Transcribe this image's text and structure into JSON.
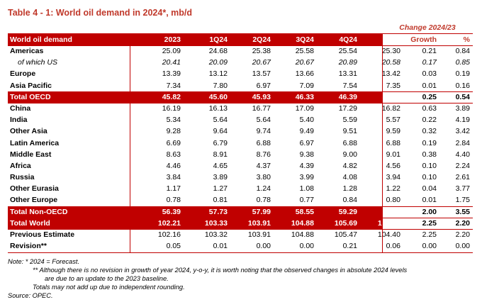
{
  "title": "Table 4 - 1: World oil demand in 2024*, mb/d",
  "header": {
    "change_group": "Change 2024/23",
    "label": "World oil demand",
    "columns": [
      "2023",
      "1Q24",
      "2Q24",
      "3Q24",
      "4Q24",
      "2024",
      "Growth",
      "%"
    ]
  },
  "rows": [
    {
      "label": "Americas",
      "values": [
        "25.09",
        "24.68",
        "25.38",
        "25.58",
        "25.54",
        "25.30",
        "0.21",
        "0.84"
      ],
      "style": "normal"
    },
    {
      "label": "of which US",
      "values": [
        "20.41",
        "20.09",
        "20.67",
        "20.67",
        "20.89",
        "20.58",
        "0.17",
        "0.85"
      ],
      "style": "italic"
    },
    {
      "label": "Europe",
      "values": [
        "13.39",
        "13.12",
        "13.57",
        "13.66",
        "13.31",
        "13.42",
        "0.03",
        "0.19"
      ],
      "style": "normal"
    },
    {
      "label": "Asia Pacific",
      "values": [
        "7.34",
        "7.80",
        "6.97",
        "7.09",
        "7.54",
        "7.35",
        "0.01",
        "0.16"
      ],
      "style": "normal"
    },
    {
      "label": "Total OECD",
      "values": [
        "45.82",
        "45.60",
        "45.93",
        "46.33",
        "46.39",
        "46.06",
        "0.25",
        "0.54"
      ],
      "style": "total"
    },
    {
      "label": "China",
      "values": [
        "16.19",
        "16.13",
        "16.77",
        "17.09",
        "17.29",
        "16.82",
        "0.63",
        "3.89"
      ],
      "style": "normal"
    },
    {
      "label": "India",
      "values": [
        "5.34",
        "5.64",
        "5.64",
        "5.40",
        "5.59",
        "5.57",
        "0.22",
        "4.19"
      ],
      "style": "normal"
    },
    {
      "label": "Other Asia",
      "values": [
        "9.28",
        "9.64",
        "9.74",
        "9.49",
        "9.51",
        "9.59",
        "0.32",
        "3.42"
      ],
      "style": "normal"
    },
    {
      "label": "Latin America",
      "values": [
        "6.69",
        "6.79",
        "6.88",
        "6.97",
        "6.88",
        "6.88",
        "0.19",
        "2.84"
      ],
      "style": "normal"
    },
    {
      "label": "Middle East",
      "values": [
        "8.63",
        "8.91",
        "8.76",
        "9.38",
        "9.00",
        "9.01",
        "0.38",
        "4.40"
      ],
      "style": "normal"
    },
    {
      "label": "Africa",
      "values": [
        "4.46",
        "4.65",
        "4.37",
        "4.39",
        "4.82",
        "4.56",
        "0.10",
        "2.24"
      ],
      "style": "normal"
    },
    {
      "label": "Russia",
      "values": [
        "3.84",
        "3.89",
        "3.80",
        "3.99",
        "4.08",
        "3.94",
        "0.10",
        "2.61"
      ],
      "style": "normal"
    },
    {
      "label": "Other Eurasia",
      "values": [
        "1.17",
        "1.27",
        "1.24",
        "1.08",
        "1.28",
        "1.22",
        "0.04",
        "3.77"
      ],
      "style": "normal"
    },
    {
      "label": "Other Europe",
      "values": [
        "0.78",
        "0.81",
        "0.78",
        "0.77",
        "0.84",
        "0.80",
        "0.01",
        "1.75"
      ],
      "style": "normal"
    },
    {
      "label": "Total Non-OECD",
      "values": [
        "56.39",
        "57.73",
        "57.99",
        "58.55",
        "59.29",
        "58.39",
        "2.00",
        "3.55"
      ],
      "style": "total"
    },
    {
      "label": "Total World",
      "values": [
        "102.21",
        "103.33",
        "103.91",
        "104.88",
        "105.69",
        "104.46",
        "2.25",
        "2.20"
      ],
      "style": "total"
    },
    {
      "label": "Previous Estimate",
      "values": [
        "102.16",
        "103.32",
        "103.91",
        "104.88",
        "105.47",
        "104.40",
        "2.25",
        "2.20"
      ],
      "style": "normal"
    },
    {
      "label": "Revision**",
      "values": [
        "0.05",
        "0.01",
        "0.00",
        "0.00",
        "0.21",
        "0.06",
        "0.00",
        "0.00"
      ],
      "style": "normal"
    }
  ],
  "notes": {
    "n1": "Note: * 2024 = Forecast.",
    "n2": "** Although there is no revision in growth of year 2024, y-o-y, it is worth noting that the observed changes in absolute 2024 levels",
    "n3": "are due to an update to the 2023 baseline.",
    "n4": "Totals may not add up due to independent rounding.",
    "n5": "Source: OPEC."
  },
  "colors": {
    "accent": "#c00000",
    "title": "#c0392b"
  }
}
